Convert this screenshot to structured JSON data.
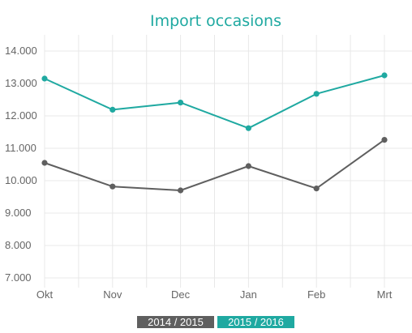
{
  "chart_data": {
    "type": "line",
    "title": "Import occasions",
    "xlabel": "",
    "ylabel": "",
    "categories": [
      "Okt",
      "Nov",
      "Dec",
      "Jan",
      "Feb",
      "Mrt"
    ],
    "ylim": [
      7000,
      14000
    ],
    "yticks": [
      7000,
      8000,
      9000,
      10000,
      11000,
      12000,
      13000,
      14000
    ],
    "ytick_labels": [
      "7.000",
      "8.000",
      "9.000",
      "10.000",
      "11.000",
      "12.000",
      "13.000",
      "14.000"
    ],
    "grid": true,
    "legend_position": "bottom-center",
    "series": [
      {
        "name": "2014 / 2015",
        "color": "#5f5f5f",
        "values": [
          10550,
          9820,
          9700,
          10450,
          9760,
          11260
        ]
      },
      {
        "name": "2015 / 2016",
        "color": "#1fa9a1",
        "values": [
          13150,
          12190,
          12410,
          11620,
          12680,
          13250
        ]
      }
    ]
  }
}
